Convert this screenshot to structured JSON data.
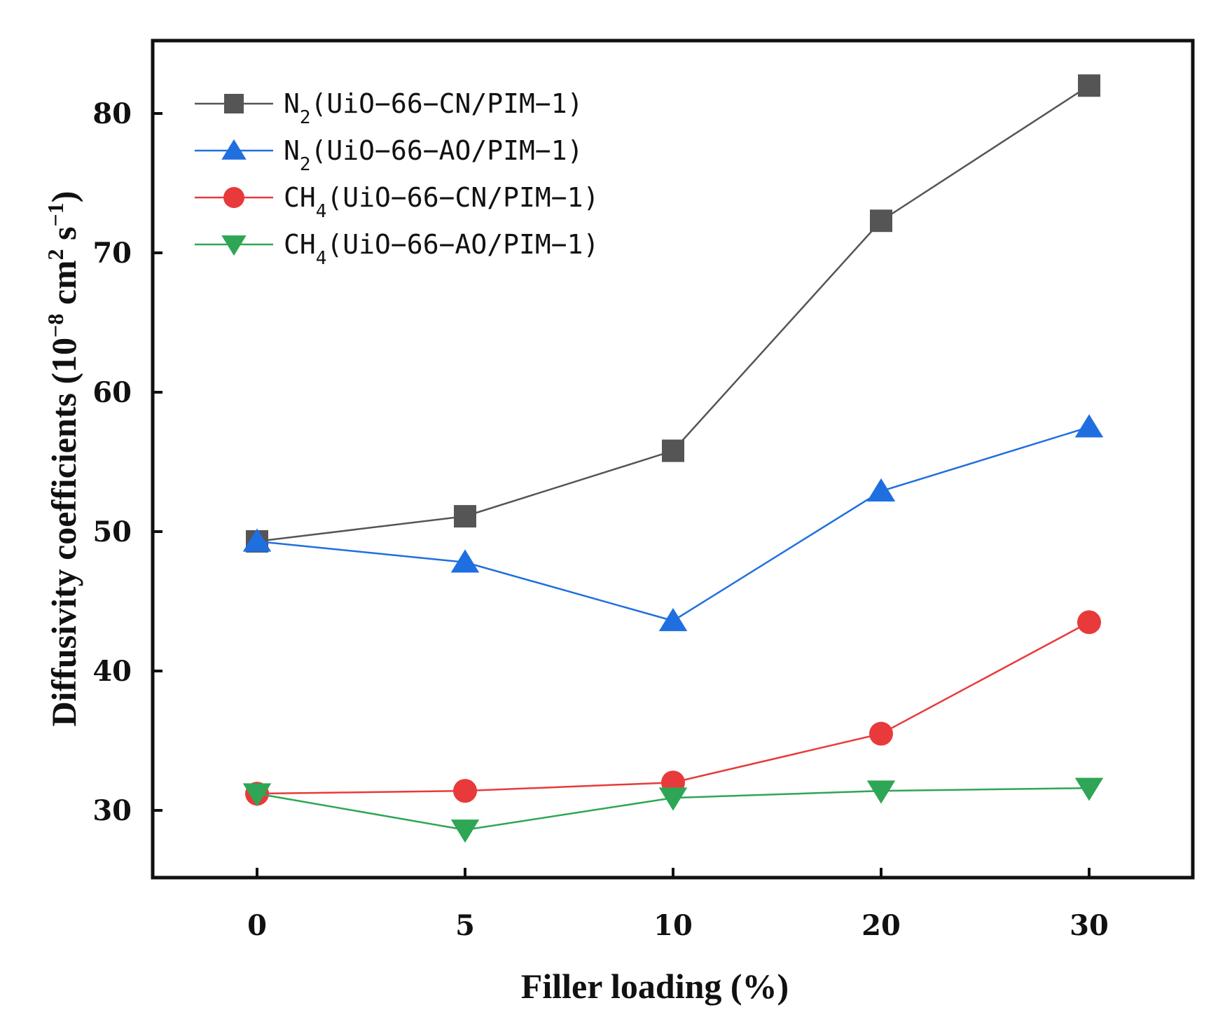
{
  "chart_data": {
    "type": "line",
    "xlabel": "Filler loading (%)",
    "ylabel_main": "Diffusivity coefficients (10",
    "ylabel_exp1": "−8",
    "ylabel_mid": " cm",
    "ylabel_exp2": "2",
    "ylabel_mid2": " s",
    "ylabel_exp3": "−1",
    "ylabel_end": ")",
    "categories": [
      "0",
      "5",
      "10",
      "20",
      "30"
    ],
    "ylim": [
      25,
      85
    ],
    "yticks": [
      30,
      40,
      50,
      60,
      70,
      80
    ],
    "legend_position": "top-left",
    "series": [
      {
        "gas": "N",
        "sub": "2",
        "label": "(UiO−66−CN/PIM−1)",
        "color": "#555555",
        "marker": "square",
        "values": [
          49.3,
          51.1,
          55.8,
          72.3,
          82.0
        ]
      },
      {
        "gas": "N",
        "sub": "2",
        "label": "(UiO−66−AO/PIM−1)",
        "color": "#1f6fe0",
        "marker": "triangle-up",
        "values": [
          49.3,
          47.8,
          43.6,
          52.9,
          57.5
        ]
      },
      {
        "gas": "CH",
        "sub": "4",
        "label": "(UiO−66−CN/PIM−1)",
        "color": "#e83a3a",
        "marker": "circle",
        "values": [
          31.2,
          31.4,
          32.0,
          35.5,
          43.5
        ]
      },
      {
        "gas": "CH",
        "sub": "4",
        "label": "(UiO−66−AO/PIM−1)",
        "color": "#2ea655",
        "marker": "triangle-down",
        "values": [
          31.2,
          28.6,
          30.9,
          31.4,
          31.6
        ]
      }
    ]
  }
}
